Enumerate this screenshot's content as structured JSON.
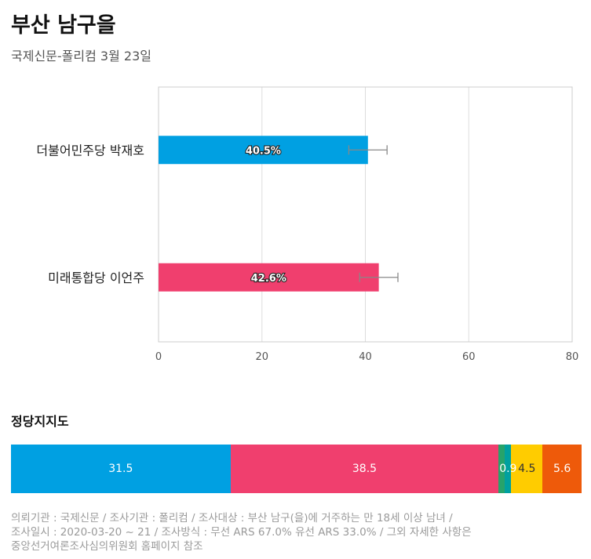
{
  "header": {
    "title": "부산 남구을",
    "subtitle": "국제신문-폴리컴 3월 23일"
  },
  "chart_data": [
    {
      "type": "bar",
      "orientation": "horizontal",
      "categories": [
        "더불어민주당 박재호",
        "미래통합당 이언주"
      ],
      "values": [
        40.5,
        42.6
      ],
      "error_margin": 3.7,
      "data_labels": [
        "40.5%",
        "42.6%"
      ],
      "colors": [
        "#00a0e2",
        "#f03f6e"
      ],
      "xlim": [
        0,
        80
      ],
      "xticks": [
        0,
        20,
        40,
        60,
        80
      ],
      "grid": true
    },
    {
      "type": "bar",
      "orientation": "horizontal-stacked",
      "title": "정당지지도",
      "values": [
        31.5,
        38.5,
        0.9,
        0.9,
        4.5,
        5.6
      ],
      "labels": [
        "31.5",
        "38.5",
        "",
        "0.9",
        "4.5",
        "5.6"
      ],
      "colors": [
        "#00a0e2",
        "#f03f6e",
        "#27a36b",
        "#00a0a0",
        "#ffcc00",
        "#ee5a0a"
      ],
      "label_colors": [
        "#ffffff",
        "#ffffff",
        "#ffffff",
        "#ffffff",
        "#333333",
        "#ffffff"
      ],
      "xlim": [
        0,
        81.9
      ]
    }
  ],
  "footer": {
    "lines": [
      "의뢰기관 : 국제신문 / 조사기관 : 폴리컴 / 조사대상 : 부산 남구(을)에 거주하는 만 18세 이상 남녀 /",
      "조사일시 : 2020-03-20 ~ 21 / 조사방식 : 무선 ARS 67.0% 유선 ARS 33.0% / 그외 자세한 사항은",
      "중앙선거여론조사심의위원회 홈페이지 참조"
    ]
  }
}
